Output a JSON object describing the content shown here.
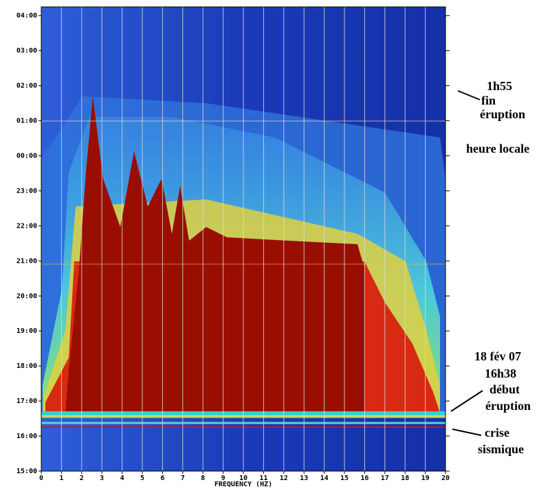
{
  "chart_data": {
    "type": "spectrogram",
    "xlabel": "FREQUENCY (HZ)",
    "xlim": [
      0,
      20
    ],
    "xticks": [
      0,
      1,
      2,
      3,
      4,
      5,
      6,
      7,
      8,
      9,
      10,
      11,
      12,
      13,
      14,
      15,
      16,
      17,
      18,
      19,
      20
    ],
    "ylim": [
      15,
      28.25
    ],
    "yticks": [
      {
        "value": 15,
        "label": "15:00"
      },
      {
        "value": 16,
        "label": "16:00"
      },
      {
        "value": 17,
        "label": "17:00"
      },
      {
        "value": 18,
        "label": "18:00"
      },
      {
        "value": 19,
        "label": "19:00"
      },
      {
        "value": 20,
        "label": "20:00"
      },
      {
        "value": 21,
        "label": "21:00"
      },
      {
        "value": 22,
        "label": "22:00"
      },
      {
        "value": 23,
        "label": "23:00"
      },
      {
        "value": 24,
        "label": "00:00"
      },
      {
        "value": 25,
        "label": "01:00"
      },
      {
        "value": 26,
        "label": "02:00"
      },
      {
        "value": 27,
        "label": "03:00"
      },
      {
        "value": 28,
        "label": "04:00"
      }
    ],
    "grid": true,
    "annotations": {
      "end": [
        "1h55",
        "fin",
        "éruption"
      ],
      "timezone": "heure locale",
      "start": [
        "18 fév 07",
        "16h38",
        "début",
        "éruption"
      ],
      "seismic": [
        "crise",
        "sismique"
      ]
    }
  }
}
